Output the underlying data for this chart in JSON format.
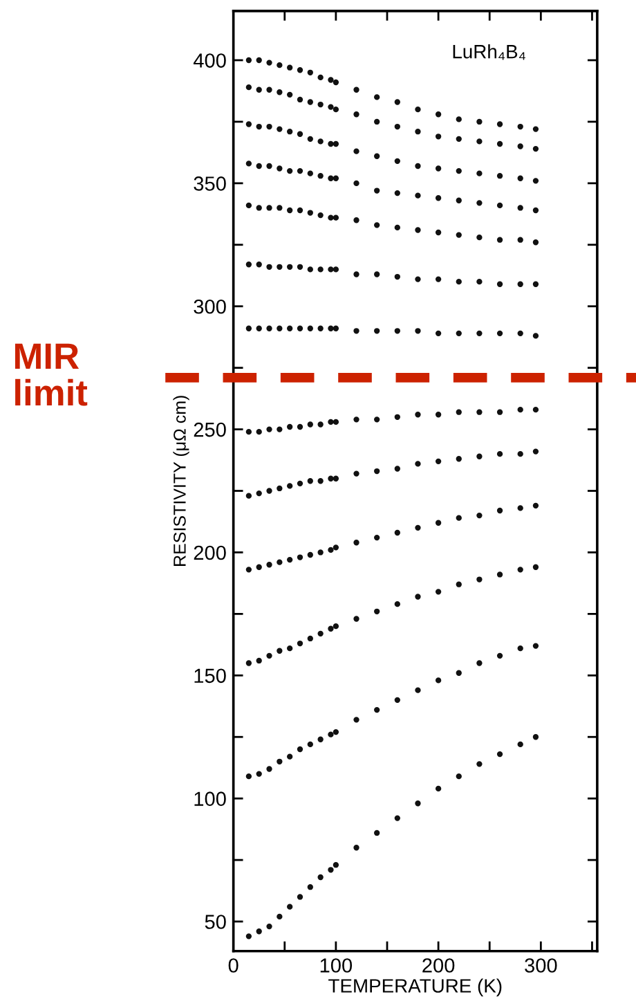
{
  "chart_data": {
    "type": "scatter",
    "xlabel": "TEMPERATURE (K)",
    "ylabel": "RESISTIVITY (μΩ cm)",
    "annotations": [
      "LuRh₄B₄"
    ],
    "x": [
      15,
      25,
      35,
      45,
      55,
      65,
      75,
      85,
      95,
      100,
      120,
      140,
      160,
      180,
      200,
      220,
      240,
      260,
      280,
      295
    ],
    "series": [
      {
        "color": "#111111",
        "values": [
          400,
          400,
          399,
          398,
          397,
          396,
          395,
          393,
          392,
          391,
          388,
          385,
          383,
          380,
          378,
          376,
          375,
          374,
          373,
          372
        ]
      },
      {
        "color": "#111111",
        "values": [
          389,
          388,
          388,
          387,
          386,
          384,
          383,
          382,
          381,
          380,
          378,
          375,
          373,
          371,
          369,
          368,
          367,
          366,
          365,
          364
        ]
      },
      {
        "color": "#111111",
        "values": [
          374,
          373,
          373,
          372,
          371,
          370,
          368,
          367,
          366,
          366,
          363,
          361,
          359,
          357,
          356,
          355,
          354,
          353,
          352,
          351
        ]
      },
      {
        "color": "#111111",
        "values": [
          358,
          357,
          357,
          356,
          355,
          355,
          354,
          353,
          352,
          352,
          350,
          347,
          346,
          345,
          344,
          343,
          342,
          341,
          340,
          339
        ]
      },
      {
        "color": "#111111",
        "values": [
          341,
          340,
          340,
          340,
          339,
          339,
          338,
          337,
          336,
          336,
          335,
          333,
          332,
          331,
          330,
          329,
          328,
          327,
          327,
          326
        ]
      },
      {
        "color": "#111111",
        "values": [
          317,
          317,
          316,
          316,
          316,
          316,
          315,
          315,
          315,
          315,
          313,
          313,
          312,
          311,
          311,
          310,
          310,
          309,
          309,
          309
        ]
      },
      {
        "color": "#111111",
        "values": [
          291,
          291,
          291,
          291,
          291,
          291,
          291,
          291,
          291,
          291,
          290,
          290,
          290,
          290,
          289,
          289,
          289,
          289,
          289,
          288
        ]
      },
      {
        "color": "#111111",
        "values": [
          249,
          249,
          250,
          250,
          251,
          251,
          252,
          252,
          253,
          253,
          254,
          254,
          255,
          256,
          256,
          257,
          257,
          257,
          258,
          258
        ]
      },
      {
        "color": "#111111",
        "values": [
          223,
          224,
          225,
          226,
          227,
          228,
          229,
          229,
          230,
          230,
          232,
          233,
          234,
          236,
          237,
          238,
          239,
          240,
          240,
          241
        ]
      },
      {
        "color": "#111111",
        "values": [
          193,
          194,
          195,
          196,
          197,
          198,
          199,
          200,
          201,
          202,
          204,
          206,
          208,
          210,
          212,
          214,
          215,
          217,
          218,
          219
        ]
      },
      {
        "color": "#111111",
        "values": [
          155,
          156,
          158,
          160,
          161,
          163,
          165,
          167,
          169,
          170,
          173,
          176,
          179,
          182,
          184,
          187,
          189,
          191,
          193,
          194
        ]
      },
      {
        "color": "#111111",
        "values": [
          109,
          110,
          112,
          115,
          117,
          120,
          122,
          124,
          126,
          127,
          132,
          136,
          140,
          144,
          148,
          151,
          155,
          158,
          161,
          162
        ]
      },
      {
        "color": "#111111",
        "values": [
          44,
          46,
          48,
          52,
          56,
          60,
          64,
          68,
          71,
          73,
          80,
          86,
          92,
          98,
          104,
          109,
          114,
          118,
          122,
          125
        ]
      }
    ],
    "marker": "circle",
    "xlim": [
      0,
      355
    ],
    "ylim": [
      38,
      420
    ],
    "xticks": [
      0,
      {
        "value": 50,
        "label": null
      },
      100,
      {
        "value": 150,
        "label": null
      },
      200,
      {
        "value": 250,
        "label": null
      },
      300,
      {
        "value": 350,
        "label": null
      }
    ],
    "yticks": [
      50,
      {
        "value": 75,
        "label": null
      },
      100,
      {
        "value": 125,
        "label": null
      },
      150,
      {
        "value": 175,
        "label": null
      },
      200,
      {
        "value": 225,
        "label": null
      },
      250,
      {
        "value": 275,
        "label": null
      },
      300,
      {
        "value": 325,
        "label": null
      },
      350,
      {
        "value": 375,
        "label": null
      },
      400
    ],
    "ref_lines": [
      {
        "axis": "y",
        "value": 271,
        "label": "MIR limit",
        "color": "#cc2200",
        "line_style": "dashed"
      }
    ],
    "grid": false,
    "legend": false
  }
}
